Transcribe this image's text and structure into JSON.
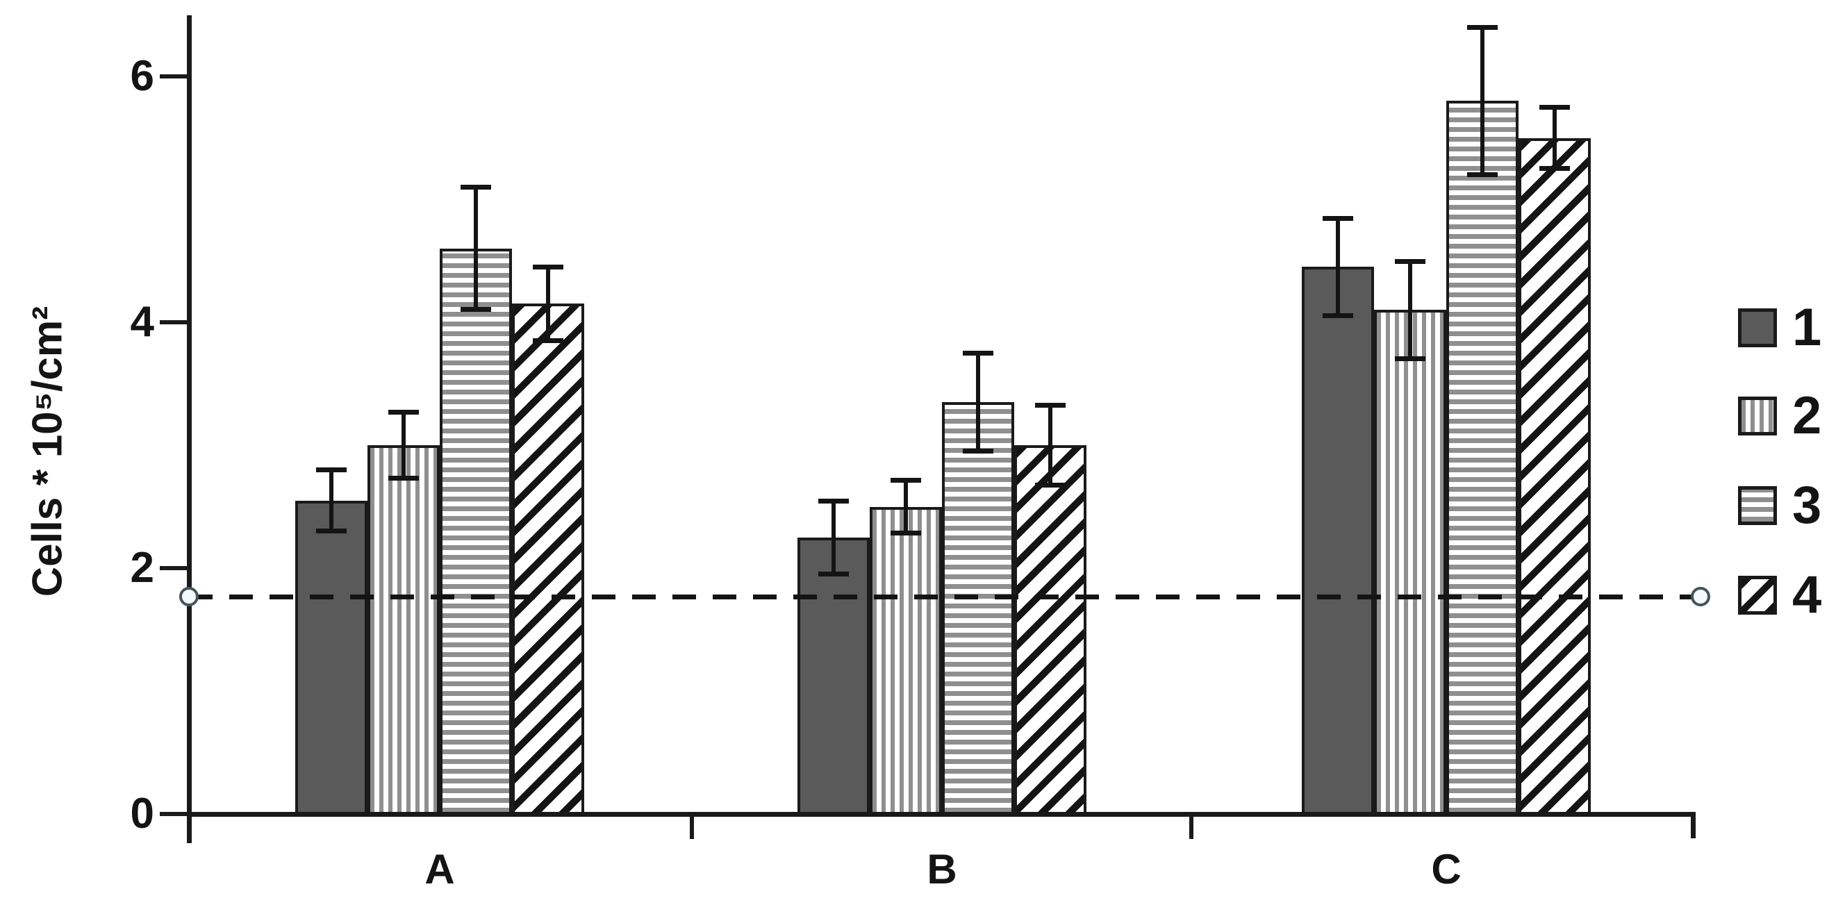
{
  "colors": {
    "background": "#ffffff",
    "bar_dark_fill": "#5a5a5a",
    "stripe_gray": "#8f8f8f",
    "line_black": "#141414",
    "reference_circle_fill": "#f2fafd"
  },
  "chart_data": {
    "type": "bar",
    "title": "",
    "xlabel": "",
    "ylabel": "Cells * 10⁵/cm²",
    "categories": [
      "A",
      "B",
      "C"
    ],
    "series": [
      {
        "name": "1",
        "pattern": "solid-dark",
        "values": [
          2.55,
          2.25,
          4.45
        ],
        "errors": [
          0.25,
          0.3,
          0.4
        ]
      },
      {
        "name": "2",
        "pattern": "vertical-stripes",
        "values": [
          3.0,
          2.5,
          4.1
        ],
        "errors": [
          0.27,
          0.22,
          0.4
        ]
      },
      {
        "name": "3",
        "pattern": "horizontal-stripes",
        "values": [
          4.6,
          3.35,
          5.8
        ],
        "errors": [
          0.5,
          0.4,
          0.6
        ]
      },
      {
        "name": "4",
        "pattern": "diagonal-stripes",
        "values": [
          4.15,
          3.0,
          5.5
        ],
        "errors": [
          0.3,
          0.33,
          0.25
        ]
      }
    ],
    "yticks": [
      0,
      2,
      4,
      6
    ],
    "ylim": [
      0,
      6.5
    ],
    "grid": false,
    "error_bars": true,
    "reference_line": {
      "value": 1.77,
      "style": "dashed",
      "endpoint_markers": "open-circles"
    },
    "legend_position": "right"
  }
}
